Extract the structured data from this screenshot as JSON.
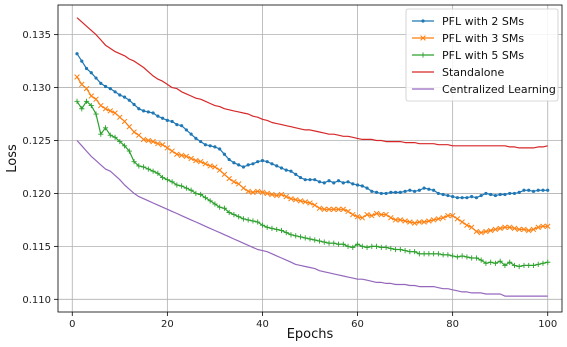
{
  "chart_data": {
    "type": "line",
    "title": "",
    "xlabel": "Epochs",
    "ylabel": "Loss",
    "xlim": [
      -3,
      103
    ],
    "ylim": [
      0.1088,
      0.1378
    ],
    "xticks": [
      0,
      20,
      40,
      60,
      80,
      100
    ],
    "yticks": [
      0.11,
      0.115,
      0.12,
      0.125,
      0.13,
      0.135
    ],
    "ytick_labels": [
      "0.110",
      "0.115",
      "0.120",
      "0.125",
      "0.130",
      "0.135"
    ],
    "grid": true,
    "legend_position": "top-right",
    "x": [
      1,
      2,
      3,
      4,
      5,
      6,
      7,
      8,
      9,
      10,
      11,
      12,
      13,
      14,
      15,
      16,
      17,
      18,
      19,
      20,
      21,
      22,
      23,
      24,
      25,
      26,
      27,
      28,
      29,
      30,
      31,
      32,
      33,
      34,
      35,
      36,
      37,
      38,
      39,
      40,
      41,
      42,
      43,
      44,
      45,
      46,
      47,
      48,
      49,
      50,
      51,
      52,
      53,
      54,
      55,
      56,
      57,
      58,
      59,
      60,
      61,
      62,
      63,
      64,
      65,
      66,
      67,
      68,
      69,
      70,
      71,
      72,
      73,
      74,
      75,
      76,
      77,
      78,
      79,
      80,
      81,
      82,
      83,
      84,
      85,
      86,
      87,
      88,
      89,
      90,
      91,
      92,
      93,
      94,
      95,
      96,
      97,
      98,
      99,
      100
    ],
    "series": [
      {
        "name": "PFL with 2 SMs",
        "color": "#1f77b4",
        "marker": "dot",
        "values": [
          0.1332,
          0.1325,
          0.1318,
          0.1314,
          0.1309,
          0.1304,
          0.1301,
          0.1299,
          0.1296,
          0.1293,
          0.1291,
          0.1288,
          0.1284,
          0.128,
          0.1278,
          0.1277,
          0.1276,
          0.1273,
          0.1271,
          0.1269,
          0.1268,
          0.1265,
          0.1264,
          0.126,
          0.1256,
          0.1252,
          0.1249,
          0.1246,
          0.1245,
          0.1244,
          0.1242,
          0.1237,
          0.1232,
          0.1229,
          0.1227,
          0.1225,
          0.1227,
          0.1228,
          0.123,
          0.1231,
          0.123,
          0.1228,
          0.1226,
          0.1224,
          0.1222,
          0.1221,
          0.1218,
          0.1215,
          0.1213,
          0.1213,
          0.1213,
          0.1211,
          0.121,
          0.1212,
          0.121,
          0.1212,
          0.121,
          0.1211,
          0.1209,
          0.1208,
          0.1207,
          0.1205,
          0.1202,
          0.1201,
          0.12,
          0.12,
          0.1201,
          0.1201,
          0.1201,
          0.1202,
          0.1203,
          0.1202,
          0.1203,
          0.1205,
          0.1204,
          0.1203,
          0.12,
          0.1199,
          0.1198,
          0.1197,
          0.1196,
          0.1196,
          0.1196,
          0.1197,
          0.1196,
          0.1198,
          0.12,
          0.1199,
          0.1198,
          0.1199,
          0.1199,
          0.12,
          0.12,
          0.1201,
          0.1203,
          0.1203,
          0.1202,
          0.1203,
          0.1203,
          0.1203
        ]
      },
      {
        "name": "PFL with 3 SMs",
        "color": "#ff7f0e",
        "marker": "x",
        "values": [
          0.131,
          0.1303,
          0.1299,
          0.1292,
          0.1289,
          0.1283,
          0.128,
          0.1278,
          0.1276,
          0.1272,
          0.1268,
          0.1263,
          0.1258,
          0.1255,
          0.1251,
          0.125,
          0.1249,
          0.1247,
          0.1246,
          0.1243,
          0.124,
          0.1237,
          0.1236,
          0.1235,
          0.1233,
          0.1231,
          0.123,
          0.1228,
          0.1226,
          0.1225,
          0.1222,
          0.1218,
          0.1214,
          0.1211,
          0.1209,
          0.1205,
          0.1202,
          0.1201,
          0.1202,
          0.1201,
          0.12,
          0.1199,
          0.1198,
          0.1199,
          0.1197,
          0.1195,
          0.1194,
          0.1193,
          0.1192,
          0.1191,
          0.1189,
          0.1186,
          0.1185,
          0.1185,
          0.1185,
          0.1185,
          0.1185,
          0.1183,
          0.118,
          0.1178,
          0.1177,
          0.118,
          0.1179,
          0.1181,
          0.118,
          0.118,
          0.1177,
          0.1175,
          0.1175,
          0.1174,
          0.1173,
          0.1172,
          0.1173,
          0.1173,
          0.1174,
          0.1175,
          0.1176,
          0.1177,
          0.1179,
          0.1179,
          0.1176,
          0.1173,
          0.117,
          0.1168,
          0.1164,
          0.1163,
          0.1164,
          0.1165,
          0.1166,
          0.1167,
          0.1168,
          0.1168,
          0.1167,
          0.1166,
          0.1166,
          0.1165,
          0.1166,
          0.1168,
          0.1169,
          0.1169
        ]
      },
      {
        "name": "PFL with 5 SMs",
        "color": "#2ca02c",
        "marker": "plus",
        "values": [
          0.1287,
          0.128,
          0.1287,
          0.1283,
          0.1275,
          0.1256,
          0.1262,
          0.1255,
          0.1253,
          0.1249,
          0.1245,
          0.124,
          0.123,
          0.1226,
          0.1225,
          0.1223,
          0.1221,
          0.1219,
          0.1215,
          0.1213,
          0.1211,
          0.1208,
          0.1207,
          0.1205,
          0.1203,
          0.12,
          0.1199,
          0.1196,
          0.1193,
          0.119,
          0.1187,
          0.1186,
          0.1182,
          0.118,
          0.1178,
          0.1176,
          0.1175,
          0.1174,
          0.1173,
          0.117,
          0.1168,
          0.1167,
          0.1166,
          0.1165,
          0.1163,
          0.1161,
          0.116,
          0.1159,
          0.1158,
          0.1157,
          0.1156,
          0.1155,
          0.1154,
          0.1153,
          0.1153,
          0.1152,
          0.1152,
          0.115,
          0.1149,
          0.1152,
          0.115,
          0.1149,
          0.115,
          0.115,
          0.1149,
          0.1149,
          0.1148,
          0.1147,
          0.1147,
          0.1146,
          0.1145,
          0.1145,
          0.1143,
          0.1143,
          0.1143,
          0.1143,
          0.1143,
          0.1142,
          0.1142,
          0.1141,
          0.114,
          0.1141,
          0.114,
          0.1139,
          0.1139,
          0.1137,
          0.1134,
          0.1135,
          0.1134,
          0.1136,
          0.1132,
          0.1135,
          0.1132,
          0.1131,
          0.1132,
          0.1132,
          0.1132,
          0.1133,
          0.1134,
          0.1135
        ]
      },
      {
        "name": "Standalone",
        "color": "#d62728",
        "marker": "none",
        "values": [
          0.1366,
          0.1362,
          0.1358,
          0.1354,
          0.135,
          0.1345,
          0.134,
          0.1337,
          0.1334,
          0.1332,
          0.133,
          0.1327,
          0.1325,
          0.1322,
          0.1319,
          0.1315,
          0.1311,
          0.1308,
          0.1306,
          0.1303,
          0.13,
          0.1299,
          0.1296,
          0.1294,
          0.1292,
          0.129,
          0.1289,
          0.1287,
          0.1285,
          0.1283,
          0.1282,
          0.128,
          0.1279,
          0.1278,
          0.1277,
          0.1276,
          0.1275,
          0.1273,
          0.1272,
          0.127,
          0.1269,
          0.1267,
          0.1266,
          0.1265,
          0.1264,
          0.1263,
          0.1262,
          0.1261,
          0.126,
          0.126,
          0.1259,
          0.1258,
          0.1257,
          0.1256,
          0.1256,
          0.1255,
          0.1254,
          0.1254,
          0.1253,
          0.1252,
          0.1251,
          0.1251,
          0.1251,
          0.125,
          0.125,
          0.1249,
          0.1249,
          0.1249,
          0.1249,
          0.1248,
          0.1248,
          0.1248,
          0.1247,
          0.1247,
          0.1247,
          0.1247,
          0.1246,
          0.1246,
          0.1246,
          0.1245,
          0.1245,
          0.1245,
          0.1245,
          0.1245,
          0.1245,
          0.1245,
          0.1245,
          0.1245,
          0.1245,
          0.1245,
          0.1245,
          0.1244,
          0.1244,
          0.1243,
          0.1243,
          0.1243,
          0.1243,
          0.1244,
          0.1244,
          0.1245
        ]
      },
      {
        "name": "Centralized Learning",
        "color": "#9467bd",
        "marker": "none",
        "values": [
          0.125,
          0.1245,
          0.124,
          0.1235,
          0.1231,
          0.1227,
          0.1223,
          0.1221,
          0.1217,
          0.1213,
          0.1208,
          0.1204,
          0.12,
          0.1197,
          0.1195,
          0.1193,
          0.1191,
          0.1189,
          0.1187,
          0.1185,
          0.1183,
          0.1181,
          0.1179,
          0.1177,
          0.1175,
          0.1173,
          0.1171,
          0.1169,
          0.1167,
          0.1165,
          0.1163,
          0.1161,
          0.1159,
          0.1157,
          0.1155,
          0.1153,
          0.1151,
          0.1149,
          0.1147,
          0.1146,
          0.1145,
          0.1143,
          0.1141,
          0.1139,
          0.1137,
          0.1135,
          0.1133,
          0.1132,
          0.1131,
          0.113,
          0.1129,
          0.1127,
          0.1126,
          0.1125,
          0.1124,
          0.1123,
          0.1122,
          0.1121,
          0.112,
          0.1119,
          0.1119,
          0.1118,
          0.1117,
          0.1116,
          0.1116,
          0.1115,
          0.1115,
          0.1114,
          0.1114,
          0.1114,
          0.1113,
          0.1113,
          0.1112,
          0.1112,
          0.1112,
          0.1112,
          0.1111,
          0.111,
          0.111,
          0.1109,
          0.1108,
          0.1107,
          0.1107,
          0.1106,
          0.1106,
          0.1106,
          0.1105,
          0.1105,
          0.1105,
          0.1105,
          0.1103,
          0.1103,
          0.1103,
          0.1103,
          0.1103,
          0.1103,
          0.1103,
          0.1103,
          0.1103,
          0.1103
        ]
      }
    ]
  }
}
